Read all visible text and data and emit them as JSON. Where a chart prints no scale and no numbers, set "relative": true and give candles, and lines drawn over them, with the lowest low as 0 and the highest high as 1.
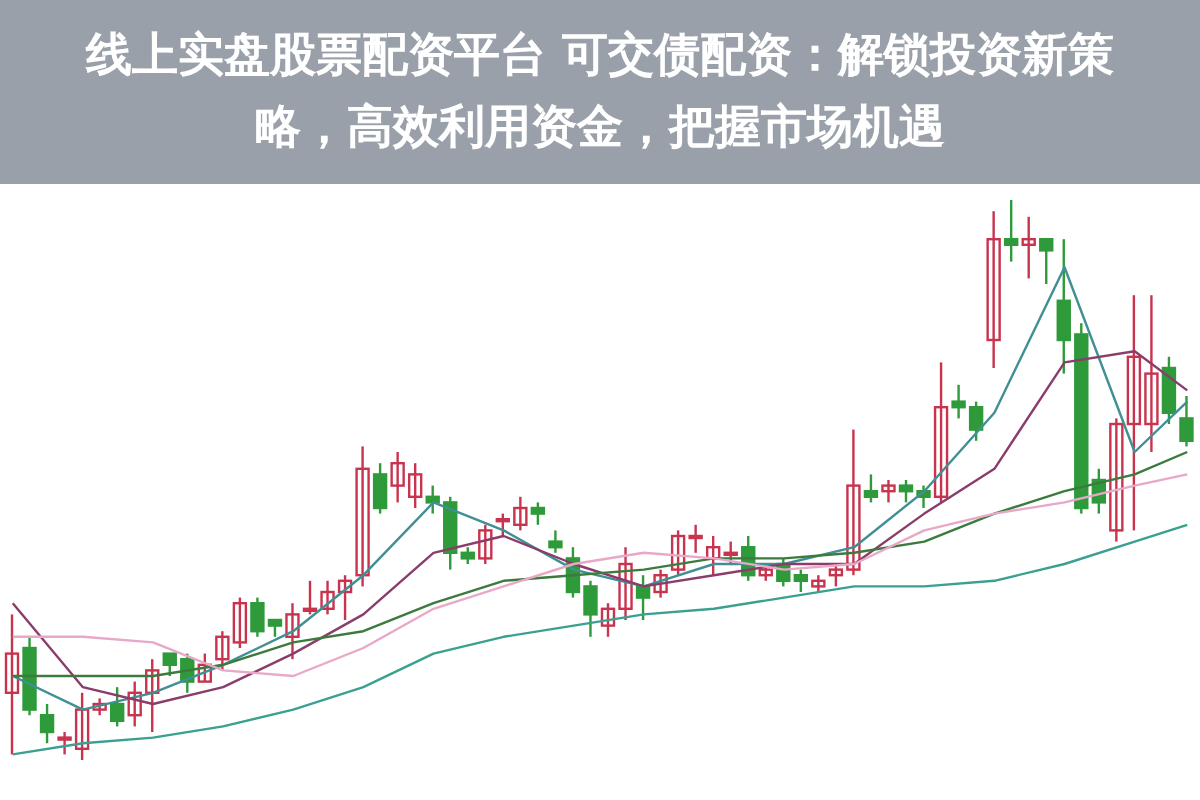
{
  "chart_data": {
    "type": "candlestick",
    "title": "线上实盘股票配资平台 可交债配资：解锁投资新策略，高效利用资金，把握市场机遇",
    "relative": true,
    "categories": [
      null,
      null,
      null,
      null,
      null,
      null,
      null,
      null,
      null,
      null,
      null,
      null,
      null,
      null,
      null,
      null,
      null,
      null,
      null,
      null,
      null,
      null,
      null,
      null,
      null,
      null,
      null,
      null,
      null,
      null,
      null,
      null,
      null,
      null,
      null,
      null,
      null,
      null,
      null,
      null,
      null,
      null,
      null,
      null,
      null,
      null,
      null,
      null,
      null,
      null,
      null,
      null,
      null,
      null,
      null,
      null,
      null,
      null,
      null,
      null,
      null,
      null,
      null,
      null,
      null,
      null,
      null,
      null
    ],
    "ohlc": [
      [
        0.12,
        0.26,
        0.01,
        0.19
      ],
      [
        0.2,
        0.22,
        0.08,
        0.09
      ],
      [
        0.08,
        0.1,
        0.03,
        0.05
      ],
      [
        0.04,
        0.05,
        0.01,
        0.04
      ],
      [
        0.02,
        0.12,
        0.0,
        0.09
      ],
      [
        0.09,
        0.11,
        0.08,
        0.1
      ],
      [
        0.1,
        0.13,
        0.06,
        0.07
      ],
      [
        0.08,
        0.14,
        0.06,
        0.12
      ],
      [
        0.12,
        0.18,
        0.05,
        0.16
      ],
      [
        0.19,
        0.19,
        0.15,
        0.17
      ],
      [
        0.18,
        0.19,
        0.12,
        0.14
      ],
      [
        0.14,
        0.19,
        0.14,
        0.17
      ],
      [
        0.18,
        0.23,
        0.16,
        0.22
      ],
      [
        0.21,
        0.29,
        0.2,
        0.28
      ],
      [
        0.28,
        0.29,
        0.22,
        0.23
      ],
      [
        0.25,
        0.25,
        0.22,
        0.24
      ],
      [
        0.22,
        0.28,
        0.18,
        0.26
      ],
      [
        0.27,
        0.32,
        0.26,
        0.27
      ],
      [
        0.27,
        0.32,
        0.26,
        0.3
      ],
      [
        0.3,
        0.33,
        0.25,
        0.32
      ],
      [
        0.33,
        0.56,
        0.31,
        0.52
      ],
      [
        0.51,
        0.53,
        0.44,
        0.45
      ],
      [
        0.49,
        0.55,
        0.46,
        0.53
      ],
      [
        0.47,
        0.53,
        0.45,
        0.51
      ],
      [
        0.47,
        0.49,
        0.44,
        0.46
      ],
      [
        0.46,
        0.47,
        0.34,
        0.37
      ],
      [
        0.37,
        0.38,
        0.35,
        0.36
      ],
      [
        0.36,
        0.42,
        0.35,
        0.41
      ],
      [
        0.43,
        0.44,
        0.4,
        0.43
      ],
      [
        0.42,
        0.47,
        0.41,
        0.45
      ],
      [
        0.45,
        0.46,
        0.42,
        0.44
      ],
      [
        0.39,
        0.41,
        0.37,
        0.38
      ],
      [
        0.36,
        0.38,
        0.29,
        0.3
      ],
      [
        0.31,
        0.32,
        0.22,
        0.26
      ],
      [
        0.24,
        0.28,
        0.22,
        0.27
      ],
      [
        0.27,
        0.38,
        0.25,
        0.35
      ],
      [
        0.31,
        0.33,
        0.25,
        0.29
      ],
      [
        0.3,
        0.34,
        0.29,
        0.33
      ],
      [
        0.34,
        0.41,
        0.33,
        0.4
      ],
      [
        0.4,
        0.42,
        0.37,
        0.4
      ],
      [
        0.36,
        0.4,
        0.33,
        0.38
      ],
      [
        0.37,
        0.39,
        0.35,
        0.37
      ],
      [
        0.38,
        0.4,
        0.32,
        0.33
      ],
      [
        0.33,
        0.35,
        0.32,
        0.34
      ],
      [
        0.35,
        0.36,
        0.31,
        0.32
      ],
      [
        0.33,
        0.34,
        0.3,
        0.32
      ],
      [
        0.31,
        0.33,
        0.3,
        0.32
      ],
      [
        0.33,
        0.35,
        0.31,
        0.34
      ],
      [
        0.34,
        0.59,
        0.33,
        0.49
      ],
      [
        0.48,
        0.51,
        0.46,
        0.47
      ],
      [
        0.48,
        0.5,
        0.46,
        0.49
      ],
      [
        0.49,
        0.5,
        0.46,
        0.48
      ],
      [
        0.48,
        0.49,
        0.45,
        0.47
      ],
      [
        0.47,
        0.71,
        0.46,
        0.63
      ],
      [
        0.64,
        0.67,
        0.61,
        0.63
      ],
      [
        0.63,
        0.64,
        0.57,
        0.59
      ],
      [
        0.75,
        0.98,
        0.7,
        0.93
      ],
      [
        0.93,
        1.0,
        0.89,
        0.92
      ],
      [
        0.92,
        0.97,
        0.86,
        0.93
      ],
      [
        0.93,
        0.93,
        0.85,
        0.91
      ],
      [
        0.82,
        0.93,
        0.69,
        0.75
      ],
      [
        0.76,
        0.78,
        0.44,
        0.45
      ],
      [
        0.5,
        0.52,
        0.44,
        0.46
      ],
      [
        0.41,
        0.61,
        0.39,
        0.6
      ],
      [
        0.6,
        0.83,
        0.41,
        0.72
      ],
      [
        0.6,
        0.83,
        0.55,
        0.69
      ],
      [
        0.7,
        0.72,
        0.6,
        0.62
      ],
      [
        0.61,
        0.65,
        0.56,
        0.57
      ]
    ],
    "series": [
      {
        "type": "line",
        "color": "#3f8f95",
        "values": [
          0.15,
          null,
          null,
          null,
          0.09,
          null,
          null,
          null,
          0.12,
          null,
          null,
          null,
          0.17,
          null,
          null,
          null,
          0.23,
          null,
          null,
          null,
          0.33,
          null,
          null,
          null,
          0.46,
          null,
          null,
          null,
          0.41,
          null,
          null,
          null,
          0.34,
          null,
          null,
          null,
          0.31,
          null,
          null,
          null,
          0.35,
          null,
          null,
          null,
          0.35,
          null,
          null,
          null,
          0.38,
          null,
          null,
          null,
          0.48,
          null,
          null,
          null,
          0.62,
          null,
          null,
          null,
          0.88,
          null,
          null,
          null,
          0.55,
          null,
          null,
          0.64
        ]
      },
      {
        "type": "line",
        "color": "#8a3d6a",
        "values": [
          0.28,
          null,
          null,
          null,
          0.13,
          null,
          null,
          null,
          0.1,
          null,
          null,
          null,
          0.13,
          null,
          null,
          null,
          0.19,
          null,
          null,
          null,
          0.26,
          null,
          null,
          null,
          0.37,
          null,
          null,
          null,
          0.4,
          null,
          null,
          null,
          0.35,
          null,
          null,
          null,
          0.31,
          null,
          null,
          null,
          0.33,
          null,
          null,
          null,
          0.35,
          null,
          null,
          null,
          0.35,
          null,
          null,
          null,
          0.44,
          null,
          null,
          null,
          0.52,
          null,
          null,
          null,
          0.71,
          null,
          null,
          null,
          0.73,
          null,
          null,
          0.66
        ]
      },
      {
        "type": "line",
        "color": "#3d7a3d",
        "values": [
          0.15,
          null,
          null,
          null,
          0.15,
          null,
          null,
          null,
          0.15,
          null,
          null,
          null,
          0.17,
          null,
          null,
          null,
          0.21,
          null,
          null,
          null,
          0.23,
          null,
          null,
          null,
          0.28,
          null,
          null,
          null,
          0.32,
          null,
          null,
          null,
          0.33,
          null,
          null,
          null,
          0.34,
          null,
          null,
          null,
          0.36,
          null,
          null,
          null,
          0.36,
          null,
          null,
          null,
          0.37,
          null,
          null,
          null,
          0.39,
          null,
          null,
          null,
          0.44,
          null,
          null,
          null,
          0.48,
          null,
          null,
          null,
          0.51,
          null,
          null,
          0.55
        ]
      },
      {
        "type": "line",
        "color": "#e8a8c8",
        "values": [
          0.22,
          null,
          null,
          null,
          0.22,
          null,
          null,
          null,
          0.21,
          null,
          null,
          null,
          0.16,
          null,
          null,
          null,
          0.15,
          null,
          null,
          null,
          0.2,
          null,
          null,
          null,
          0.27,
          null,
          null,
          null,
          0.31,
          null,
          null,
          null,
          0.35,
          null,
          null,
          null,
          0.37,
          null,
          null,
          null,
          0.36,
          null,
          null,
          null,
          0.34,
          null,
          null,
          null,
          0.35,
          null,
          null,
          null,
          0.41,
          null,
          null,
          null,
          0.44,
          null,
          null,
          null,
          0.46,
          null,
          null,
          null,
          0.49,
          null,
          null,
          0.51
        ]
      },
      {
        "type": "line",
        "color": "#3aa090",
        "values": [
          0.01,
          null,
          null,
          null,
          0.03,
          null,
          null,
          null,
          0.04,
          null,
          null,
          null,
          0.06,
          null,
          null,
          null,
          0.09,
          null,
          null,
          null,
          0.13,
          null,
          null,
          null,
          0.19,
          null,
          null,
          null,
          0.22,
          null,
          null,
          null,
          0.24,
          null,
          null,
          null,
          0.26,
          null,
          null,
          null,
          0.27,
          null,
          null,
          null,
          0.29,
          null,
          null,
          null,
          0.31,
          null,
          null,
          null,
          0.31,
          null,
          null,
          null,
          0.32,
          null,
          null,
          null,
          0.35,
          null,
          null,
          null,
          0.39,
          null,
          null,
          0.42
        ]
      }
    ]
  }
}
